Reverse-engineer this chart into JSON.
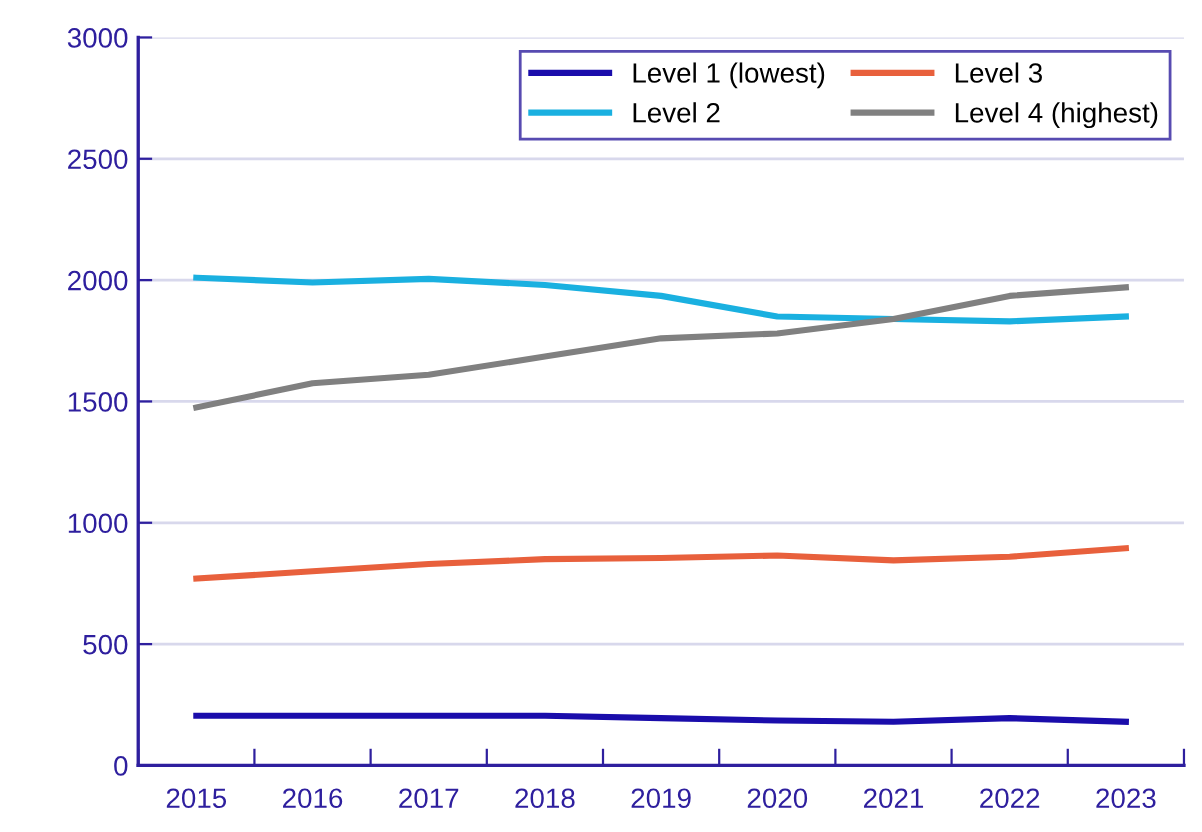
{
  "chart_data": {
    "type": "line",
    "categories": [
      "2015",
      "2016",
      "2017",
      "2018",
      "2019",
      "2020",
      "2021",
      "2022",
      "2023"
    ],
    "series": [
      {
        "name": "Level 1 (lowest)",
        "color": "#1a0dab",
        "values": [
          205,
          205,
          205,
          205,
          195,
          185,
          180,
          195,
          180
        ]
      },
      {
        "name": "Level 2",
        "color": "#1ab0e0",
        "values": [
          2010,
          1990,
          2005,
          1980,
          1935,
          1850,
          1840,
          1830,
          1850
        ]
      },
      {
        "name": "Level 3",
        "color": "#e8603c",
        "values": [
          770,
          800,
          830,
          850,
          855,
          865,
          845,
          860,
          895
        ]
      },
      {
        "name": "Level 4 (highest)",
        "color": "#808080",
        "values": [
          1475,
          1575,
          1610,
          1685,
          1760,
          1780,
          1840,
          1935,
          1970
        ]
      }
    ],
    "ylim": [
      0,
      3000
    ],
    "yticks": [
      0,
      500,
      1000,
      1500,
      2000,
      2500,
      3000
    ],
    "grid": "y",
    "legend": "top right",
    "marker": "none",
    "line_style": "solid"
  }
}
